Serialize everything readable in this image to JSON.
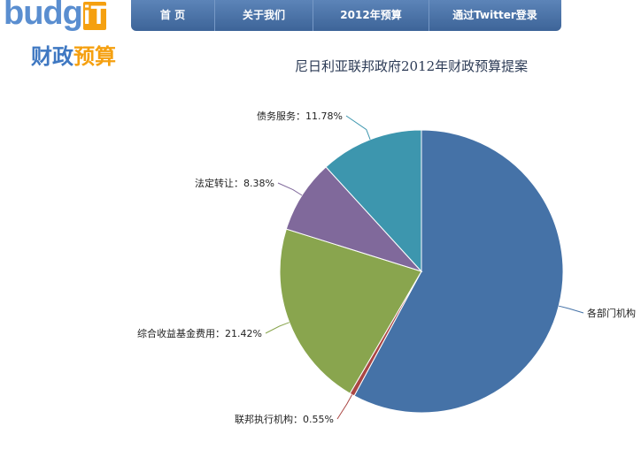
{
  "logo": {
    "word_main": "budg",
    "word_it": "iT",
    "sub_a": "财政",
    "sub_b": "预算"
  },
  "nav": {
    "items": [
      {
        "label": "首  页"
      },
      {
        "label": "关于我们"
      },
      {
        "label": "2012年预算"
      },
      {
        "label": "通过Twitter登录"
      }
    ]
  },
  "chart_data": {
    "type": "pie",
    "title": "尼日利亚联邦政府2012年财政预算提案",
    "slices": [
      {
        "label": "各部门机构",
        "value": 57.87,
        "color": "#4572a7",
        "text": "各部门机构"
      },
      {
        "label": "联邦执行机构",
        "value": 0.55,
        "color": "#aa4643",
        "text": "联邦执行机构：0.55%"
      },
      {
        "label": "综合收益基金费用",
        "value": 21.42,
        "color": "#89a54e",
        "text": "综合收益基金费用：21.42%"
      },
      {
        "label": "法定转让",
        "value": 8.38,
        "color": "#80699b",
        "text": "法定转让：8.38%"
      },
      {
        "label": "债务服务",
        "value": 11.78,
        "color": "#3d96ae",
        "text": "债务服务：11.78%"
      }
    ]
  }
}
